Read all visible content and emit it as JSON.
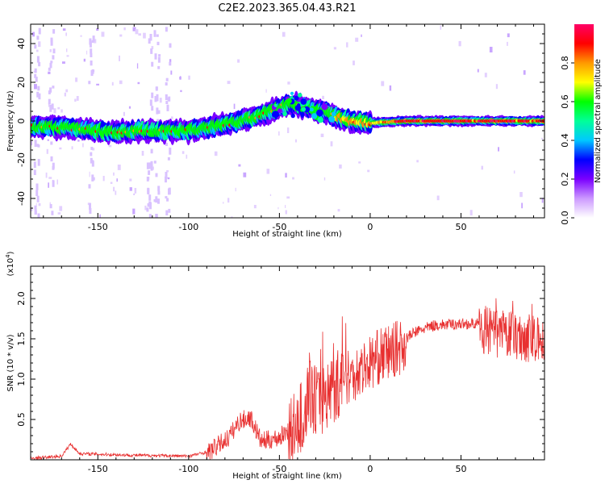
{
  "title": "C2E2.2023.365.04.43.R21",
  "chart_data": [
    {
      "type": "heatmap",
      "name": "spectrogram",
      "xlabel": "Height of straight line (km)",
      "ylabel": "Frequency (Hz)",
      "xlim": [
        -187,
        96
      ],
      "ylim": [
        -50,
        50
      ],
      "xticks": [
        -150,
        -100,
        -50,
        0,
        50
      ],
      "yticks": [
        -40,
        -20,
        0,
        20,
        40
      ],
      "ridge": [
        {
          "x": -185,
          "y": -3
        },
        {
          "x": -160,
          "y": -4
        },
        {
          "x": -140,
          "y": -6
        },
        {
          "x": -125,
          "y": -5
        },
        {
          "x": -100,
          "y": -5
        },
        {
          "x": -80,
          "y": -2
        },
        {
          "x": -60,
          "y": 3
        },
        {
          "x": -45,
          "y": 9
        },
        {
          "x": -35,
          "y": 7
        },
        {
          "x": -25,
          "y": 5
        },
        {
          "x": -18,
          "y": 2
        },
        {
          "x": -10,
          "y": 0
        },
        {
          "x": 0,
          "y": -1
        },
        {
          "x": 20,
          "y": 0
        },
        {
          "x": 50,
          "y": 0
        },
        {
          "x": 95,
          "y": 0
        }
      ],
      "colorbar": {
        "label": "Normalized spectral amplitude",
        "ticks": [
          0.0,
          0.2,
          0.4,
          0.6,
          0.8
        ],
        "range": [
          0,
          1
        ],
        "colors": [
          "#ffffff",
          "#cc99ff",
          "#7b00ff",
          "#0000ff",
          "#00c8ff",
          "#00ff99",
          "#00ff00",
          "#ffff00",
          "#ff9900",
          "#ff0000",
          "#ff0066"
        ]
      }
    },
    {
      "type": "line",
      "name": "snr",
      "xlabel": "Height of straight line (km)",
      "ylabel": "SNR (10 * v/v)",
      "scale_note": "(x10",
      "scale_exp": "4",
      "scale_close": ")",
      "xlim": [
        -187,
        96
      ],
      "ylim": [
        0,
        2.4
      ],
      "xticks": [
        -150,
        -100,
        -50,
        0,
        50
      ],
      "yticks": [
        0.5,
        1.0,
        1.5,
        2.0
      ],
      "color": "#e83030",
      "envelope": [
        {
          "x": -187,
          "y": 0.02
        },
        {
          "x": -170,
          "y": 0.05
        },
        {
          "x": -165,
          "y": 0.2
        },
        {
          "x": -160,
          "y": 0.08
        },
        {
          "x": -130,
          "y": 0.06
        },
        {
          "x": -100,
          "y": 0.05
        },
        {
          "x": -90,
          "y": 0.1
        },
        {
          "x": -78,
          "y": 0.3
        },
        {
          "x": -72,
          "y": 0.5
        },
        {
          "x": -66,
          "y": 0.55
        },
        {
          "x": -60,
          "y": 0.25
        },
        {
          "x": -50,
          "y": 0.3
        },
        {
          "x": -40,
          "y": 0.5
        },
        {
          "x": -33,
          "y": 0.9
        },
        {
          "x": -28,
          "y": 0.8
        },
        {
          "x": -20,
          "y": 1.0
        },
        {
          "x": -12,
          "y": 1.1
        },
        {
          "x": -5,
          "y": 1.2
        },
        {
          "x": 5,
          "y": 1.35
        },
        {
          "x": 15,
          "y": 1.45
        },
        {
          "x": 25,
          "y": 1.6
        },
        {
          "x": 35,
          "y": 1.68
        },
        {
          "x": 50,
          "y": 1.7
        },
        {
          "x": 60,
          "y": 1.7
        },
        {
          "x": 70,
          "y": 1.62
        },
        {
          "x": 80,
          "y": 1.6
        },
        {
          "x": 90,
          "y": 1.55
        },
        {
          "x": 96,
          "y": 1.5
        }
      ]
    }
  ]
}
